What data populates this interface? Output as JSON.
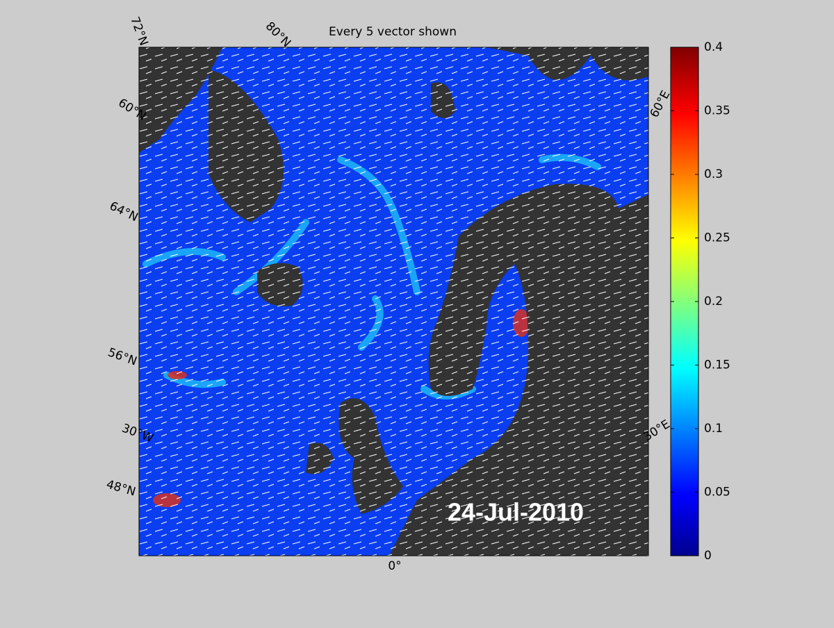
{
  "title": "Every 5 vector shown",
  "date": "24-Jul-2010",
  "map_labels": {
    "lat": [
      "72°N",
      "80°N",
      "60°N",
      "64°N",
      "56°N",
      "48°N"
    ],
    "lon": [
      "30°W",
      "0°",
      "30°E",
      "60°E"
    ]
  },
  "colorbar": {
    "lim": [
      0,
      0.4
    ],
    "ticks": [
      0,
      0.05,
      0.1,
      0.15,
      0.2,
      0.25,
      0.3,
      0.35,
      0.4
    ]
  }
}
